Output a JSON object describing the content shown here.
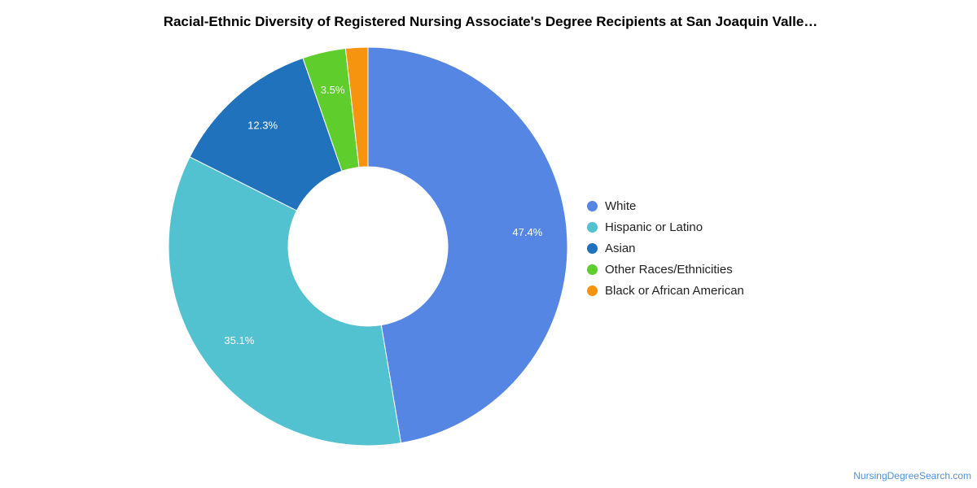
{
  "chart_data": {
    "type": "pie",
    "variant": "donut",
    "title": "Racial-Ethnic Diversity of Registered Nursing Associate's Degree Recipients at San Joaquin Valle…",
    "legend_position": "right",
    "slices": [
      {
        "label": "White",
        "value": 47.4,
        "value_label": "47.4%",
        "color": "#5586e4"
      },
      {
        "label": "Hispanic or Latino",
        "value": 35.1,
        "value_label": "35.1%",
        "color": "#52c1d0"
      },
      {
        "label": "Asian",
        "value": 12.3,
        "value_label": "12.3%",
        "color": "#1f72bb"
      },
      {
        "label": "Other Races/Ethnicities",
        "value": 3.5,
        "value_label": "3.5%",
        "color": "#5fcd2b"
      },
      {
        "label": "Black or African American",
        "value": 1.8,
        "value_label": "",
        "color": "#f7940f"
      }
    ]
  },
  "footer": {
    "source": "NursingDegreeSearch.com"
  }
}
